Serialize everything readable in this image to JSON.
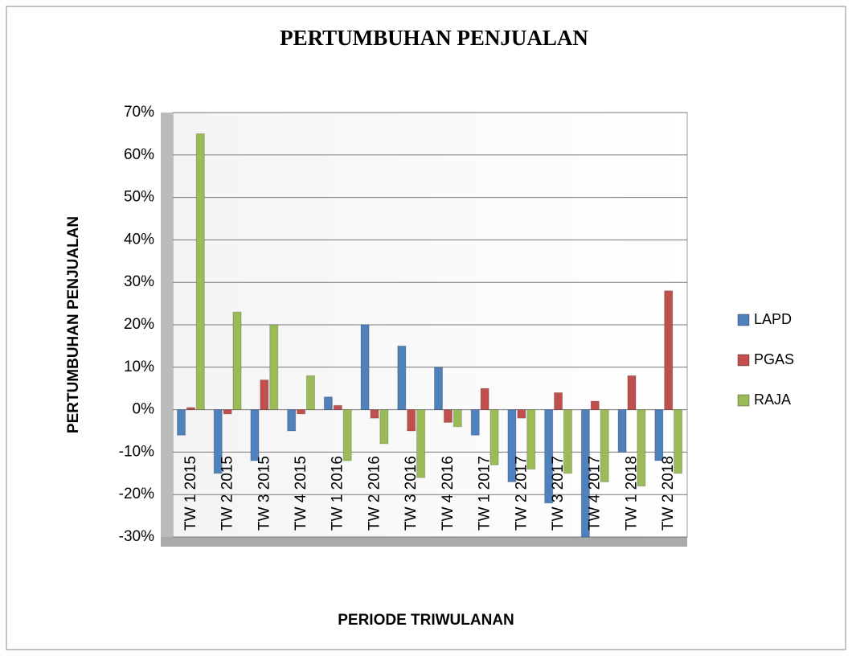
{
  "chart_data": {
    "type": "bar",
    "title": "PERTUMBUHAN PENJUALAN",
    "x_label": "PERIODE TRIWULANAN",
    "y_label": "PERTUMBUHAN PENJUALAN",
    "categories": [
      "TW 1 2015",
      "TW 2 2015",
      "TW 3 2015",
      "TW 4 2015",
      "TW 1 2016",
      "TW 2 2016",
      "TW 3 2016",
      "TW 4 2016",
      "TW 1 2017",
      "TW 2 2017",
      "TW 3 2017",
      "TW 4 2017",
      "TW 1 2018",
      "TW 2 2018"
    ],
    "series": [
      {
        "name": "LAPD",
        "color": "#4f81bd",
        "values": [
          -6,
          -15,
          -12,
          -5,
          3,
          20,
          15,
          10,
          -6,
          -17,
          -22,
          -30,
          -10,
          -12
        ]
      },
      {
        "name": "PGAS",
        "color": "#c0504d",
        "values": [
          0.5,
          -1,
          7,
          -1,
          1,
          -2,
          -5,
          -3,
          5,
          -2,
          4,
          2,
          8,
          28
        ]
      },
      {
        "name": "RAJA",
        "color": "#9bbb59",
        "values": [
          65,
          23,
          20,
          8,
          -12,
          -8,
          -16,
          -4,
          -13,
          -14,
          -15,
          -17,
          -18,
          -15
        ]
      }
    ],
    "ylim": [
      -30,
      70
    ],
    "yticks": [
      {
        "value": -30,
        "label": "-30%"
      },
      {
        "value": -20,
        "label": "-20%"
      },
      {
        "value": -10,
        "label": "-10%"
      },
      {
        "value": 0,
        "label": "0%"
      },
      {
        "value": 10,
        "label": "10%"
      },
      {
        "value": 20,
        "label": "20%"
      },
      {
        "value": 30,
        "label": "30%"
      },
      {
        "value": 40,
        "label": "40%"
      },
      {
        "value": 50,
        "label": "50%"
      },
      {
        "value": 60,
        "label": "60%"
      },
      {
        "value": 70,
        "label": "70%"
      }
    ],
    "grid": true,
    "legend": "right"
  }
}
